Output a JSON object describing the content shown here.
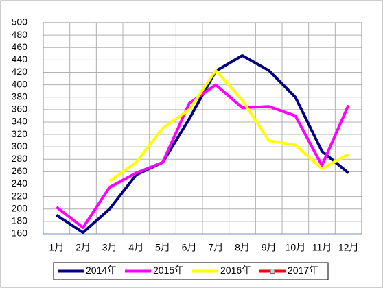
{
  "chart_data": {
    "type": "line",
    "categories": [
      "1月",
      "2月",
      "3月",
      "4月",
      "5月",
      "6月",
      "7月",
      "8月",
      "9月",
      "10月",
      "11月",
      "12月"
    ],
    "series": [
      {
        "name": "2014年",
        "color": "#000080",
        "values": [
          190,
          162,
          200,
          255,
          275,
          345,
          422,
          447,
          423,
          380,
          293,
          258
        ]
      },
      {
        "name": "2015年",
        "color": "#ff00ff",
        "values": [
          203,
          170,
          235,
          258,
          275,
          370,
          400,
          363,
          365,
          350,
          270,
          367
        ]
      },
      {
        "name": "2016年",
        "color": "#ffff00",
        "values": [
          null,
          null,
          245,
          275,
          330,
          360,
          423,
          375,
          310,
          303,
          265,
          288
        ]
      },
      {
        "name": "2017年",
        "color": "#ff0000",
        "values": [
          null,
          null,
          null,
          null,
          null,
          null,
          null,
          null,
          null,
          null,
          null,
          null
        ]
      }
    ],
    "ylim": [
      160,
      500
    ],
    "yticks": [
      160,
      180,
      200,
      220,
      240,
      260,
      280,
      300,
      320,
      340,
      360,
      380,
      400,
      420,
      440,
      460,
      480,
      500
    ],
    "grid": true,
    "legend": "bottom"
  }
}
